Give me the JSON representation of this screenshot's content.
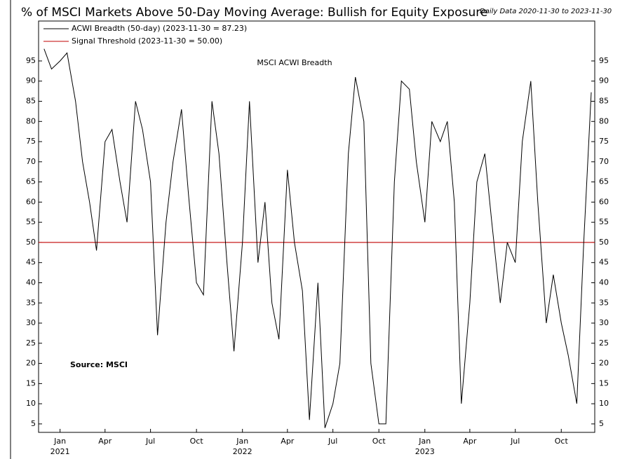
{
  "chart_data": {
    "type": "line",
    "title": "% of MSCI Markets Above 50-Day Moving Average: Bullish for Equity Exposure",
    "subtitle": "Daily Data 2020-11-30 to 2023-11-30",
    "annotations": [
      "MSCI ACWI Breadth",
      "Source: MSCI"
    ],
    "x": [
      "2020-11-30",
      "2020-12-15",
      "2021-01-01",
      "2021-01-15",
      "2021-02-01",
      "2021-02-15",
      "2021-03-01",
      "2021-03-15",
      "2021-04-01",
      "2021-04-15",
      "2021-05-01",
      "2021-05-15",
      "2021-06-01",
      "2021-06-15",
      "2021-07-01",
      "2021-07-15",
      "2021-08-01",
      "2021-08-15",
      "2021-09-01",
      "2021-09-15",
      "2021-10-01",
      "2021-10-15",
      "2021-11-01",
      "2021-11-15",
      "2021-12-01",
      "2021-12-15",
      "2022-01-01",
      "2022-01-15",
      "2022-02-01",
      "2022-02-15",
      "2022-03-01",
      "2022-03-15",
      "2022-04-01",
      "2022-04-15",
      "2022-05-01",
      "2022-05-15",
      "2022-06-01",
      "2022-06-15",
      "2022-07-01",
      "2022-07-15",
      "2022-08-01",
      "2022-08-15",
      "2022-09-01",
      "2022-09-15",
      "2022-10-01",
      "2022-10-15",
      "2022-11-01",
      "2022-11-15",
      "2022-12-01",
      "2022-12-15",
      "2023-01-01",
      "2023-01-15",
      "2023-02-01",
      "2023-02-15",
      "2023-03-01",
      "2023-03-15",
      "2023-04-01",
      "2023-04-15",
      "2023-05-01",
      "2023-05-15",
      "2023-06-01",
      "2023-06-15",
      "2023-07-01",
      "2023-07-15",
      "2023-08-01",
      "2023-08-15",
      "2023-09-01",
      "2023-09-15",
      "2023-10-01",
      "2023-10-15",
      "2023-11-01",
      "2023-11-15",
      "2023-11-30"
    ],
    "series": [
      {
        "name": "ACWI Breadth (50-day) (2023-11-30 = 87.23)",
        "color": "#000000",
        "values": [
          98,
          93,
          95,
          97,
          85,
          70,
          60,
          48,
          75,
          78,
          65,
          55,
          85,
          78,
          65,
          27,
          55,
          70,
          83,
          62,
          40,
          37,
          85,
          72,
          45,
          23,
          50,
          85,
          45,
          60,
          35,
          26,
          68,
          50,
          38,
          6,
          40,
          4,
          10,
          20,
          72,
          91,
          80,
          20,
          5,
          5,
          65,
          90,
          88,
          70,
          55,
          80,
          75,
          80,
          60,
          10,
          35,
          65,
          72,
          55,
          35,
          50,
          45,
          75,
          90,
          60,
          30,
          42,
          30,
          22,
          10,
          50,
          87.23
        ]
      }
    ],
    "threshold": {
      "name": "Signal Threshold (2023-11-30 = 50.00)",
      "color": "#c00000",
      "value": 50
    },
    "xlim": [
      "2020-11-19",
      "2023-12-07"
    ],
    "ylim": [
      2.9,
      104.9
    ],
    "yticks": [
      5,
      10,
      15,
      20,
      25,
      30,
      35,
      40,
      45,
      50,
      55,
      60,
      65,
      70,
      75,
      80,
      85,
      90,
      95
    ],
    "xticks": [
      {
        "value": "2021-01-01",
        "label": "Jan"
      },
      {
        "value": "2021-04-01",
        "label": "Apr"
      },
      {
        "value": "2021-07-01",
        "label": "Jul"
      },
      {
        "value": "2021-10-01",
        "label": "Oct"
      },
      {
        "value": "2022-01-01",
        "label": "Jan"
      },
      {
        "value": "2022-04-01",
        "label": "Apr"
      },
      {
        "value": "2022-07-01",
        "label": "Jul"
      },
      {
        "value": "2022-10-01",
        "label": "Oct"
      },
      {
        "value": "2023-01-01",
        "label": "Jan"
      },
      {
        "value": "2023-04-01",
        "label": "Apr"
      },
      {
        "value": "2023-07-01",
        "label": "Jul"
      },
      {
        "value": "2023-10-01",
        "label": "Oct"
      }
    ],
    "xtick_years": [
      {
        "value": "2021-01-01",
        "label": "2021"
      },
      {
        "value": "2022-01-01",
        "label": "2022"
      },
      {
        "value": "2023-01-01",
        "label": "2023"
      }
    ]
  }
}
